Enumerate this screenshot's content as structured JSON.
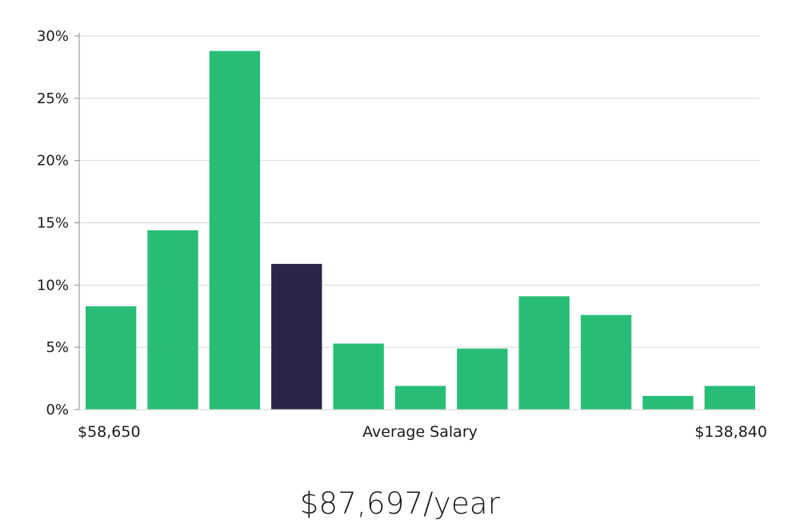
{
  "chart_data": {
    "type": "bar",
    "categories": [
      "1",
      "2",
      "3",
      "4",
      "5",
      "6",
      "7",
      "8",
      "9",
      "10",
      "11"
    ],
    "values": [
      8.3,
      14.4,
      28.8,
      11.7,
      5.3,
      1.9,
      4.9,
      9.1,
      7.6,
      1.1,
      1.9
    ],
    "highlight_index": 3,
    "ylim": [
      0,
      30
    ],
    "y_ticks": [
      0,
      5,
      10,
      15,
      20,
      25,
      30
    ],
    "y_tick_labels": [
      "0%",
      "5%",
      "10%",
      "15%",
      "20%",
      "25%",
      "30%"
    ],
    "x_min_label": "$58,650",
    "xlabel": "Average Salary",
    "x_max_label": "$138,840",
    "grid": true,
    "colors": {
      "bar": "#28bd77",
      "highlight": "#2a2647",
      "grid": "#d9d9d9"
    }
  },
  "summary": {
    "average_salary": "$87,697/year"
  }
}
